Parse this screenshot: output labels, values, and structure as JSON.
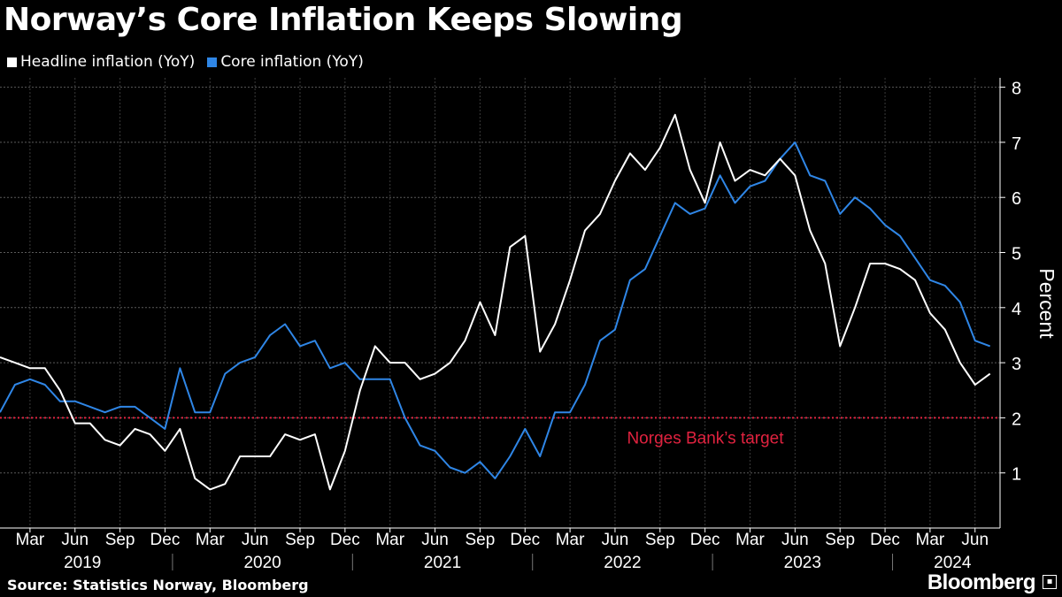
{
  "title": "Norway’s Core Inflation Keeps Slowing",
  "legend": {
    "headline": "Headline inflation (YoY)",
    "core": "Core inflation (YoY)"
  },
  "source": "Source: Statistics Norway, Bloomberg",
  "brand": "Bloomberg",
  "colors": {
    "headline": "#ffffff",
    "core": "#2f86e6",
    "target": "#e0223f",
    "grid": "#5a5a5a"
  },
  "chart_data": {
    "type": "line",
    "title": "Norway’s Core Inflation Keeps Slowing",
    "ylabel": "Percent",
    "ylim": [
      0,
      8
    ],
    "yticks": [
      1,
      2,
      3,
      4,
      5,
      6,
      7,
      8
    ],
    "x_start": "2019-01",
    "x_months": 68,
    "month_ticks": [
      "Mar",
      "Jun",
      "Sep",
      "Dec",
      "Mar",
      "Jun",
      "Sep",
      "Dec",
      "Mar",
      "Jun",
      "Sep",
      "Dec",
      "Mar",
      "Jun",
      "Sep",
      "Dec",
      "Mar",
      "Jun",
      "Sep",
      "Dec",
      "Mar",
      "Jun"
    ],
    "year_labels": [
      "2019",
      "2020",
      "2021",
      "2022",
      "2023",
      "2024"
    ],
    "target": {
      "value": 2,
      "label": "Norges Bank’s target"
    },
    "series": [
      {
        "name": "Headline inflation (YoY)",
        "values": [
          3.1,
          3.0,
          2.9,
          2.9,
          2.5,
          1.9,
          1.9,
          1.6,
          1.5,
          1.8,
          1.7,
          1.4,
          1.8,
          0.9,
          0.7,
          0.8,
          1.3,
          1.3,
          1.3,
          1.7,
          1.6,
          1.7,
          0.7,
          1.4,
          2.5,
          3.3,
          3.0,
          3.0,
          2.7,
          2.8,
          3.0,
          3.4,
          4.1,
          3.5,
          5.1,
          5.3,
          3.2,
          3.7,
          4.5,
          5.4,
          5.7,
          6.3,
          6.8,
          6.5,
          6.9,
          7.5,
          6.5,
          5.9,
          7.0,
          6.3,
          6.5,
          6.4,
          6.7,
          6.4,
          5.4,
          4.8,
          3.3,
          4.0,
          4.8,
          4.8,
          4.7,
          4.5,
          3.9,
          3.6,
          3.0,
          2.6,
          2.8
        ]
      },
      {
        "name": "Core inflation (YoY)",
        "values": [
          2.1,
          2.6,
          2.7,
          2.6,
          2.3,
          2.3,
          2.2,
          2.1,
          2.2,
          2.2,
          2.0,
          1.8,
          2.9,
          2.1,
          2.1,
          2.8,
          3.0,
          3.1,
          3.5,
          3.7,
          3.3,
          3.4,
          2.9,
          3.0,
          2.7,
          2.7,
          2.7,
          2.0,
          1.5,
          1.4,
          1.1,
          1.0,
          1.2,
          0.9,
          1.3,
          1.8,
          1.3,
          2.1,
          2.1,
          2.6,
          3.4,
          3.6,
          4.5,
          4.7,
          5.3,
          5.9,
          5.7,
          5.8,
          6.4,
          5.9,
          6.2,
          6.3,
          6.7,
          7.0,
          6.4,
          6.3,
          5.7,
          6.0,
          5.8,
          5.5,
          5.3,
          4.9,
          4.5,
          4.4,
          4.1,
          3.4,
          3.3
        ]
      }
    ]
  }
}
